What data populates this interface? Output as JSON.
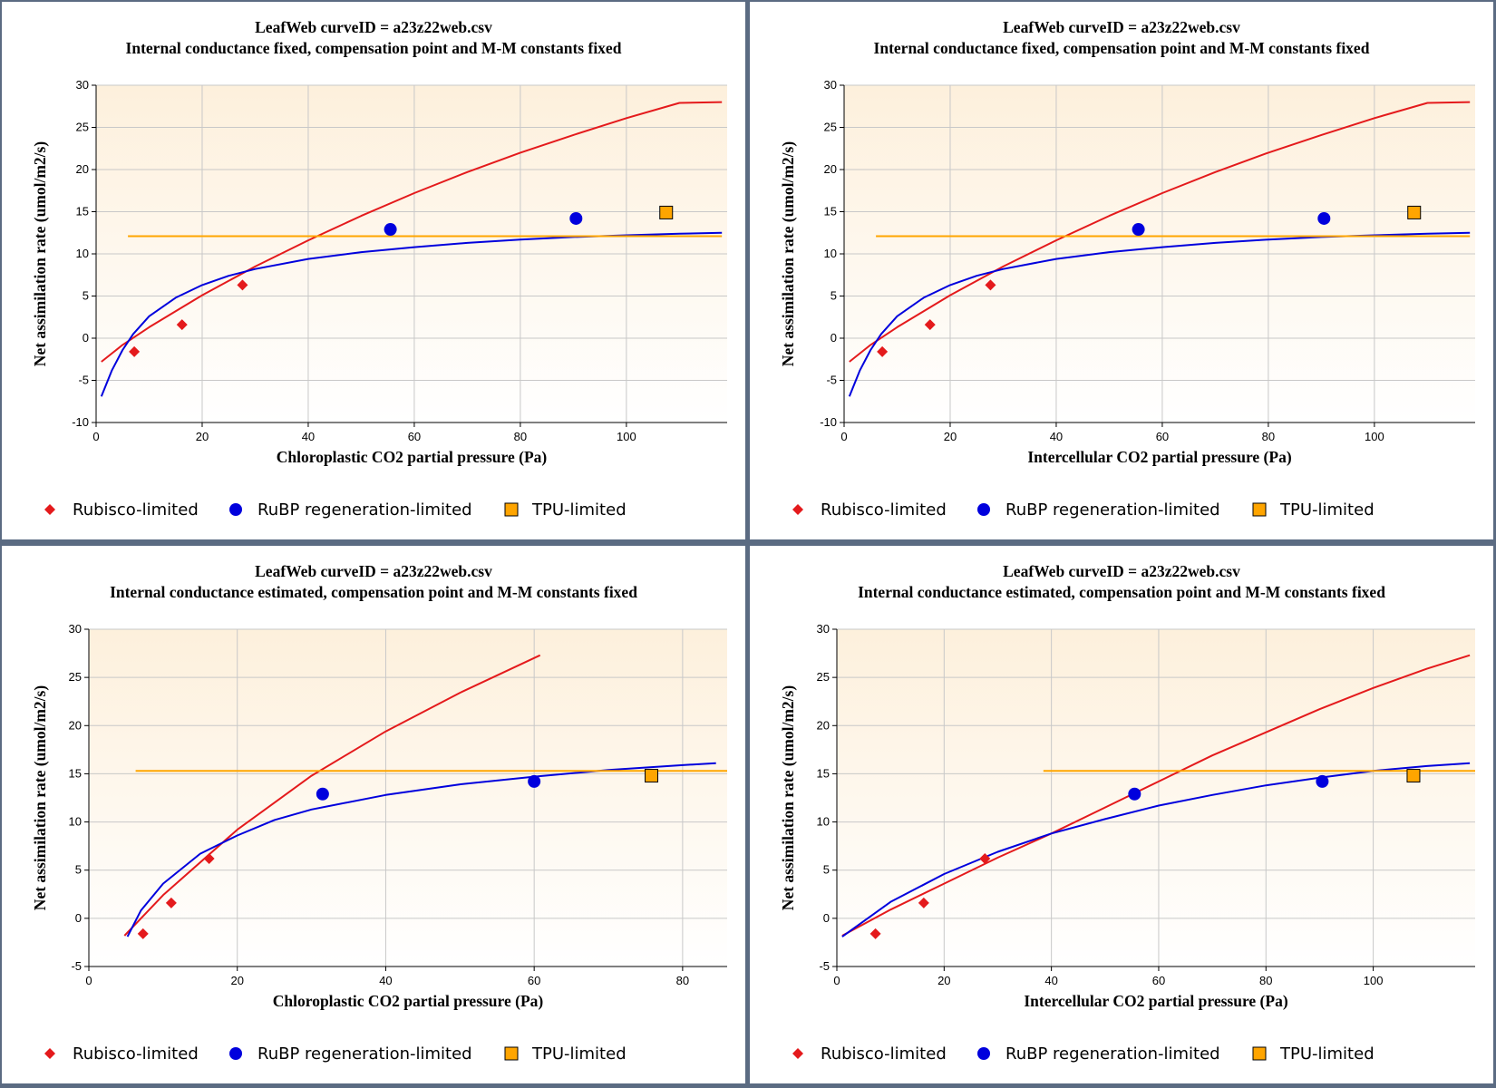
{
  "colors": {
    "rubisco": "#e41a1c",
    "rubp": "#0000dd",
    "tpu": "#ffa500",
    "plot_bg_top": "#fdf0dc",
    "plot_bg_bottom": "#ffffff"
  },
  "legend": {
    "rubisco": "Rubisco-limited",
    "rubp": "RuBP regeneration-limited",
    "tpu": "TPU-limited"
  },
  "chart_data": [
    {
      "type": "scatter",
      "title": "LeafWeb curveID = a23z22web.csv",
      "subtitle": "Internal conductance fixed, compensation point and M-M constants fixed",
      "xlabel": "Chloroplastic CO2 partial pressure (Pa)",
      "ylabel": "Net assimilation rate (umol/m2/s)",
      "xlim": [
        0,
        119
      ],
      "ylim": [
        -10,
        30
      ],
      "xticks": [
        0,
        20,
        40,
        60,
        80,
        100
      ],
      "yticks": [
        -10,
        -5,
        0,
        5,
        10,
        15,
        20,
        25,
        30
      ],
      "grid": true,
      "series": [
        {
          "name": "Rubisco-limited",
          "kind": "points",
          "marker": "diamond",
          "x": [
            7.2,
            16.2,
            27.6
          ],
          "y": [
            -1.6,
            1.6,
            6.3
          ]
        },
        {
          "name": "RuBP regeneration-limited",
          "kind": "points",
          "marker": "circle",
          "x": [
            55.5,
            90.5
          ],
          "y": [
            12.9,
            14.2
          ]
        },
        {
          "name": "TPU-limited",
          "kind": "points",
          "marker": "square",
          "x": [
            107.5
          ],
          "y": [
            14.9
          ]
        }
      ],
      "curves": [
        {
          "kind": "rubisco",
          "x": [
            1,
            5,
            10,
            20,
            30,
            40,
            50,
            60,
            70,
            80,
            90,
            100,
            110,
            118
          ],
          "y": [
            -2.8,
            -0.8,
            1.3,
            5.1,
            8.5,
            11.6,
            14.5,
            17.2,
            19.7,
            22.0,
            24.1,
            26.1,
            27.9,
            28.0
          ]
        },
        {
          "kind": "rubp",
          "x": [
            1,
            3,
            5,
            7,
            10,
            15,
            20,
            25,
            30,
            40,
            50,
            60,
            70,
            80,
            90,
            100,
            110,
            118
          ],
          "y": [
            -6.9,
            -3.8,
            -1.4,
            0.5,
            2.6,
            4.8,
            6.3,
            7.4,
            8.2,
            9.4,
            10.2,
            10.8,
            11.3,
            11.7,
            12.0,
            12.2,
            12.4,
            12.5
          ]
        },
        {
          "kind": "tpu",
          "x": [
            6,
            118
          ],
          "y": [
            12.1,
            12.1
          ]
        }
      ]
    },
    {
      "type": "scatter",
      "title": "LeafWeb curveID = a23z22web.csv",
      "subtitle": "Internal conductance fixed, compensation point and M-M constants fixed",
      "xlabel": "Intercellular CO2 partial pressure (Pa)",
      "ylabel": "Net assimilation rate (umol/m2/s)",
      "xlim": [
        0,
        119
      ],
      "ylim": [
        -10,
        30
      ],
      "xticks": [
        0,
        20,
        40,
        60,
        80,
        100
      ],
      "yticks": [
        -10,
        -5,
        0,
        5,
        10,
        15,
        20,
        25,
        30
      ],
      "grid": true,
      "series": [
        {
          "name": "Rubisco-limited",
          "kind": "points",
          "marker": "diamond",
          "x": [
            7.2,
            16.2,
            27.6
          ],
          "y": [
            -1.6,
            1.6,
            6.3
          ]
        },
        {
          "name": "RuBP regeneration-limited",
          "kind": "points",
          "marker": "circle",
          "x": [
            55.5,
            90.5
          ],
          "y": [
            12.9,
            14.2
          ]
        },
        {
          "name": "TPU-limited",
          "kind": "points",
          "marker": "square",
          "x": [
            107.5
          ],
          "y": [
            14.9
          ]
        }
      ],
      "curves": [
        {
          "kind": "rubisco",
          "x": [
            1,
            5,
            10,
            20,
            30,
            40,
            50,
            60,
            70,
            80,
            90,
            100,
            110,
            118
          ],
          "y": [
            -2.8,
            -0.8,
            1.3,
            5.1,
            8.5,
            11.6,
            14.5,
            17.2,
            19.7,
            22.0,
            24.1,
            26.1,
            27.9,
            28.0
          ]
        },
        {
          "kind": "rubp",
          "x": [
            1,
            3,
            5,
            7,
            10,
            15,
            20,
            25,
            30,
            40,
            50,
            60,
            70,
            80,
            90,
            100,
            110,
            118
          ],
          "y": [
            -6.9,
            -3.8,
            -1.4,
            0.5,
            2.6,
            4.8,
            6.3,
            7.4,
            8.2,
            9.4,
            10.2,
            10.8,
            11.3,
            11.7,
            12.0,
            12.2,
            12.4,
            12.5
          ]
        },
        {
          "kind": "tpu",
          "x": [
            6,
            118
          ],
          "y": [
            12.1,
            12.1
          ]
        }
      ]
    },
    {
      "type": "scatter",
      "title": "LeafWeb curveID = a23z22web.csv",
      "subtitle": "Internal conductance estimated, compensation point and M-M constants fixed",
      "xlabel": "Chloroplastic CO2 partial pressure (Pa)",
      "ylabel": "Net assimilation rate (umol/m2/s)",
      "xlim": [
        0,
        86
      ],
      "ylim": [
        -5,
        30
      ],
      "xticks": [
        0,
        20,
        40,
        60,
        80
      ],
      "yticks": [
        -5,
        0,
        5,
        10,
        15,
        20,
        25,
        30
      ],
      "grid": true,
      "series": [
        {
          "name": "Rubisco-limited",
          "kind": "points",
          "marker": "diamond",
          "x": [
            7.3,
            11.1,
            16.2
          ],
          "y": [
            -1.6,
            1.6,
            6.2
          ]
        },
        {
          "name": "RuBP regeneration-limited",
          "kind": "points",
          "marker": "circle",
          "x": [
            31.5,
            60.0
          ],
          "y": [
            12.9,
            14.2
          ]
        },
        {
          "name": "TPU-limited",
          "kind": "points",
          "marker": "square",
          "x": [
            75.8
          ],
          "y": [
            14.8
          ]
        }
      ],
      "curves": [
        {
          "kind": "rubisco",
          "x": [
            4.8,
            10,
            20,
            30,
            40,
            50,
            60.8
          ],
          "y": [
            -1.8,
            2.4,
            9.2,
            14.8,
            19.4,
            23.4,
            27.3
          ]
        },
        {
          "kind": "rubp",
          "x": [
            5.2,
            7,
            10,
            15,
            20,
            25,
            30,
            40,
            50,
            60,
            70,
            80,
            84.5
          ],
          "y": [
            -1.9,
            0.8,
            3.6,
            6.7,
            8.6,
            10.2,
            11.3,
            12.8,
            13.9,
            14.7,
            15.4,
            15.9,
            16.1
          ]
        },
        {
          "kind": "tpu",
          "x": [
            6.3,
            86
          ],
          "y": [
            15.3,
            15.3
          ]
        }
      ]
    },
    {
      "type": "scatter",
      "title": "LeafWeb curveID = a23z22web.csv",
      "subtitle": "Internal conductance estimated, compensation point and M-M constants fixed",
      "xlabel": "Intercellular CO2 partial pressure (Pa)",
      "ylabel": "Net assimilation rate (umol/m2/s)",
      "xlim": [
        0,
        119
      ],
      "ylim": [
        -5,
        30
      ],
      "xticks": [
        0,
        20,
        40,
        60,
        80,
        100
      ],
      "yticks": [
        -5,
        0,
        5,
        10,
        15,
        20,
        25,
        30
      ],
      "grid": true,
      "series": [
        {
          "name": "Rubisco-limited",
          "kind": "points",
          "marker": "diamond",
          "x": [
            7.2,
            16.2,
            27.6
          ],
          "y": [
            -1.6,
            1.6,
            6.2
          ]
        },
        {
          "name": "RuBP regeneration-limited",
          "kind": "points",
          "marker": "circle",
          "x": [
            55.5,
            90.5
          ],
          "y": [
            12.9,
            14.2
          ]
        },
        {
          "name": "TPU-limited",
          "kind": "points",
          "marker": "square",
          "x": [
            107.5
          ],
          "y": [
            14.8
          ]
        }
      ],
      "curves": [
        {
          "kind": "rubisco",
          "x": [
            1,
            10,
            20,
            30,
            40,
            50,
            60,
            70,
            80,
            90,
            100,
            110,
            118
          ],
          "y": [
            -1.8,
            0.9,
            3.6,
            6.3,
            8.8,
            11.5,
            14.2,
            16.9,
            19.3,
            21.7,
            23.9,
            25.9,
            27.3
          ]
        },
        {
          "kind": "rubp",
          "x": [
            1,
            10,
            20,
            30,
            40,
            50,
            60,
            70,
            80,
            90,
            100,
            110,
            118
          ],
          "y": [
            -1.9,
            1.7,
            4.6,
            6.9,
            8.8,
            10.3,
            11.7,
            12.8,
            13.8,
            14.6,
            15.3,
            15.8,
            16.1
          ]
        },
        {
          "kind": "tpu",
          "x": [
            38.5,
            119
          ],
          "y": [
            15.3,
            15.3
          ]
        }
      ]
    }
  ]
}
